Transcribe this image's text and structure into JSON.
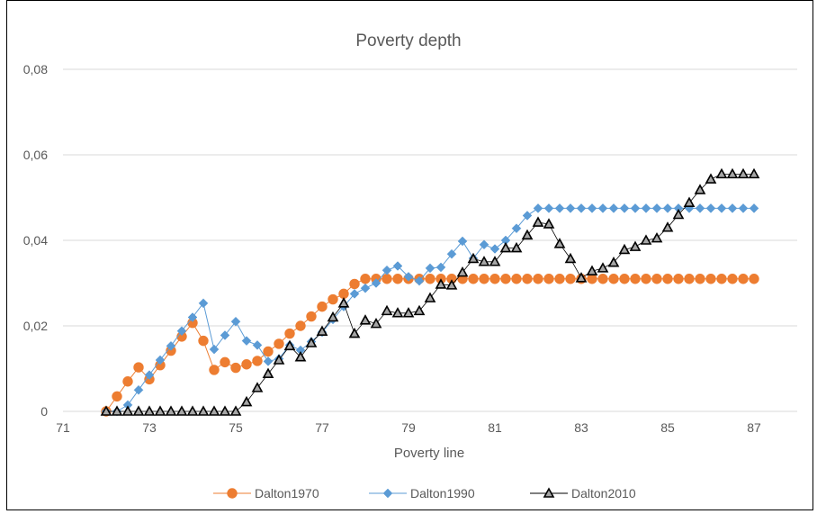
{
  "chart_data": {
    "type": "line",
    "title": "Poverty depth",
    "xlabel": "Poverty line",
    "ylabel": "",
    "xlim": [
      71,
      88
    ],
    "ylim": [
      0,
      0.08
    ],
    "x_ticks": [
      "71",
      "73",
      "75",
      "77",
      "79",
      "81",
      "83",
      "85",
      "87"
    ],
    "y_ticks": [
      "0",
      "0,02",
      "0,04",
      "0,06",
      "0,08"
    ],
    "grid": "horizontal",
    "legend": "bottom",
    "x": [
      72.0,
      72.25,
      72.5,
      72.75,
      73.0,
      73.25,
      73.5,
      73.75,
      74.0,
      74.25,
      74.5,
      74.75,
      75.0,
      75.25,
      75.5,
      75.75,
      76.0,
      76.25,
      76.5,
      76.75,
      77.0,
      77.25,
      77.5,
      77.75,
      78.0,
      78.25,
      78.5,
      78.75,
      79.0,
      79.25,
      79.5,
      79.75,
      80.0,
      80.25,
      80.5,
      80.75,
      81.0,
      81.25,
      81.5,
      81.75,
      82.0,
      82.25,
      82.5,
      82.75,
      83.0,
      83.25,
      83.5,
      83.75,
      84.0,
      84.25,
      84.5,
      84.75,
      85.0,
      85.25,
      85.5,
      85.75,
      86.0,
      86.25,
      86.5,
      86.75,
      87.0
    ],
    "series": [
      {
        "name": "Dalton1970",
        "color": "#ED7D31",
        "marker": "circle",
        "values": [
          0.0,
          0.0035,
          0.007,
          0.0103,
          0.0075,
          0.0108,
          0.0142,
          0.0175,
          0.0207,
          0.0165,
          0.0097,
          0.0115,
          0.0102,
          0.011,
          0.0118,
          0.014,
          0.0158,
          0.0182,
          0.02,
          0.0222,
          0.0245,
          0.0262,
          0.0275,
          0.0298,
          0.031,
          0.031,
          0.031,
          0.031,
          0.031,
          0.031,
          0.031,
          0.031,
          0.031,
          0.031,
          0.031,
          0.031,
          0.031,
          0.031,
          0.031,
          0.031,
          0.031,
          0.031,
          0.031,
          0.031,
          0.031,
          0.031,
          0.031,
          0.031,
          0.031,
          0.031,
          0.031,
          0.031,
          0.031,
          0.031,
          0.031,
          0.031,
          0.031,
          0.031,
          0.031,
          0.031,
          0.031
        ]
      },
      {
        "name": "Dalton1990",
        "color": "#5B9BD5",
        "marker": "diamond",
        "values": [
          0.0,
          0.0,
          0.0015,
          0.005,
          0.0085,
          0.012,
          0.0153,
          0.0188,
          0.022,
          0.0253,
          0.0145,
          0.0178,
          0.021,
          0.0165,
          0.0155,
          0.0117,
          0.0123,
          0.0155,
          0.0143,
          0.0163,
          0.0185,
          0.0215,
          0.0245,
          0.0275,
          0.0288,
          0.03,
          0.033,
          0.034,
          0.0315,
          0.0305,
          0.0335,
          0.0337,
          0.0368,
          0.0398,
          0.0358,
          0.039,
          0.038,
          0.04,
          0.0428,
          0.0458,
          0.0475,
          0.0475,
          0.0475,
          0.0475,
          0.0475,
          0.0475,
          0.0475,
          0.0475,
          0.0475,
          0.0475,
          0.0475,
          0.0475,
          0.0475,
          0.0475,
          0.0475,
          0.0475,
          0.0475,
          0.0475,
          0.0475,
          0.0475,
          0.0475
        ]
      },
      {
        "name": "Dalton2010",
        "color": "#000000",
        "marker": "triangle",
        "values": [
          0.0,
          0.0,
          0.0,
          0.0,
          0.0,
          0.0,
          0.0,
          0.0,
          0.0,
          0.0,
          0.0,
          0.0,
          0.0,
          0.0022,
          0.0055,
          0.0088,
          0.012,
          0.0153,
          0.0127,
          0.016,
          0.0187,
          0.022,
          0.0253,
          0.0182,
          0.0213,
          0.0205,
          0.0235,
          0.023,
          0.023,
          0.0235,
          0.0265,
          0.0297,
          0.0295,
          0.0325,
          0.0357,
          0.035,
          0.035,
          0.0382,
          0.0382,
          0.0412,
          0.0442,
          0.0438,
          0.0392,
          0.0357,
          0.0312,
          0.0328,
          0.0335,
          0.0348,
          0.0378,
          0.0385,
          0.04,
          0.0405,
          0.043,
          0.046,
          0.0488,
          0.0518,
          0.0543,
          0.0555,
          0.0555,
          0.0555,
          0.0555
        ]
      }
    ]
  }
}
